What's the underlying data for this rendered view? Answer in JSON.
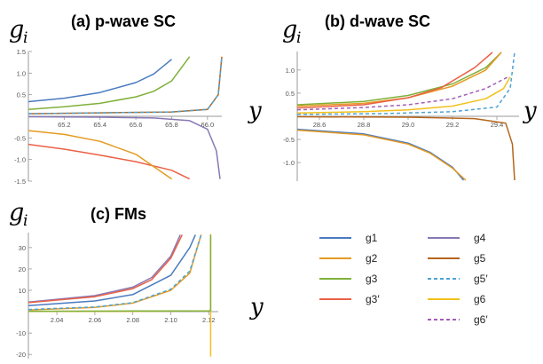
{
  "figure": {
    "axis_symbol": "g",
    "axis_subscript": "i",
    "horizontal_axis_symbol": "y"
  },
  "legend": {
    "entries": [
      {
        "name": "g1",
        "color": "#4a7bbf",
        "dashed": false
      },
      {
        "name": "g2",
        "color": "#e59a22",
        "dashed": false
      },
      {
        "name": "g3",
        "color": "#7fb03a",
        "dashed": false
      },
      {
        "name": "g3′",
        "color": "#ea6146",
        "dashed": false
      },
      {
        "name": "g4",
        "color": "#8878b3",
        "dashed": false
      },
      {
        "name": "g5",
        "color": "#b5651d",
        "dashed": false
      },
      {
        "name": "g5′",
        "color": "#4ea3d1",
        "dashed": true
      },
      {
        "name": "g6",
        "color": "#f2c11b",
        "dashed": false
      },
      {
        "name": "g6′",
        "color": "#a35eb6",
        "dashed": true
      }
    ]
  },
  "chart_data": [
    {
      "type": "line",
      "title": "(a) p-wave SC",
      "xlabel": "y",
      "ylabel": "g_i",
      "xlim": [
        65.0,
        66.08
      ],
      "ylim": [
        -1.5,
        1.5
      ],
      "xticks": [
        "65.2",
        "65.4",
        "65.6",
        "65.8",
        "66.0"
      ],
      "xtick_values": [
        65.2,
        65.4,
        65.6,
        65.8,
        66.0
      ],
      "yticks": [
        "1.5",
        "1.0",
        "0.5",
        "-0.5",
        "-1.0",
        "-1.5"
      ],
      "ytick_values": [
        1.5,
        1.0,
        0.5,
        -0.5,
        -1.0,
        -1.5
      ],
      "series": [
        {
          "name": "g1",
          "x": [
            65.0,
            65.2,
            65.4,
            65.6,
            65.7,
            65.8
          ],
          "y": [
            0.34,
            0.42,
            0.55,
            0.78,
            0.98,
            1.32
          ]
        },
        {
          "name": "g3",
          "x": [
            65.0,
            65.2,
            65.4,
            65.6,
            65.7,
            65.8,
            65.9
          ],
          "y": [
            0.16,
            0.22,
            0.3,
            0.45,
            0.58,
            0.82,
            1.38
          ]
        },
        {
          "name": "g3′",
          "x": [
            65.0,
            65.2,
            65.4,
            65.6,
            65.8,
            65.9
          ],
          "y": [
            -0.65,
            -0.76,
            -0.9,
            -1.05,
            -1.25,
            -1.45
          ]
        },
        {
          "name": "g2",
          "x": [
            65.0,
            65.2,
            65.4,
            65.6,
            65.8
          ],
          "y": [
            -0.33,
            -0.42,
            -0.58,
            -0.88,
            -1.45
          ]
        },
        {
          "name": "g4",
          "x": [
            65.0,
            65.4,
            65.7,
            65.9,
            66.0,
            66.05,
            66.07
          ],
          "y": [
            -0.01,
            -0.02,
            -0.04,
            -0.1,
            -0.3,
            -0.8,
            -1.45
          ]
        },
        {
          "name": "g5",
          "x": [
            65.0,
            65.4,
            65.8,
            66.0,
            66.06,
            66.08
          ],
          "y": [
            0.06,
            0.08,
            0.1,
            0.16,
            0.5,
            1.38
          ]
        },
        {
          "name": "g5′",
          "x": [
            65.0,
            65.4,
            65.8,
            66.0,
            66.06,
            66.08
          ],
          "y": [
            0.06,
            0.08,
            0.1,
            0.16,
            0.5,
            1.38
          ]
        }
      ]
    },
    {
      "type": "line",
      "title": "(b) d-wave  SC",
      "xlabel": "y",
      "ylabel": "g_i",
      "xlim": [
        28.5,
        29.5
      ],
      "ylim": [
        -1.4,
        1.4
      ],
      "xticks": [
        "28.6",
        "28.8",
        "29.0",
        "29.2",
        "29.4"
      ],
      "xtick_values": [
        28.6,
        28.8,
        29.0,
        29.2,
        29.4
      ],
      "yticks": [
        "1.0",
        "0.5",
        "-0.5",
        "-1.0"
      ],
      "ytick_values": [
        1.0,
        0.5,
        -0.5,
        -1.0
      ],
      "series": [
        {
          "name": "g3",
          "x": [
            28.5,
            28.8,
            29.0,
            29.2,
            29.35,
            29.42
          ],
          "y": [
            0.25,
            0.32,
            0.45,
            0.7,
            1.05,
            1.38
          ]
        },
        {
          "name": "g2",
          "x": [
            28.5,
            28.8,
            29.0,
            29.2,
            29.35,
            29.42
          ],
          "y": [
            0.22,
            0.28,
            0.4,
            0.65,
            1.0,
            1.38
          ]
        },
        {
          "name": "g3′",
          "x": [
            28.5,
            28.8,
            29.0,
            29.15,
            29.3,
            29.38
          ],
          "y": [
            0.18,
            0.25,
            0.4,
            0.62,
            1.05,
            1.38
          ]
        },
        {
          "name": "g6′",
          "x": [
            28.5,
            28.8,
            29.0,
            29.2,
            29.35,
            29.45
          ],
          "y": [
            0.14,
            0.19,
            0.25,
            0.38,
            0.6,
            0.85
          ]
        },
        {
          "name": "g6",
          "x": [
            28.5,
            28.8,
            29.0,
            29.2,
            29.35,
            29.43,
            29.46
          ],
          "y": [
            0.07,
            0.1,
            0.14,
            0.22,
            0.38,
            0.6,
            0.85
          ]
        },
        {
          "name": "g5′",
          "x": [
            28.5,
            28.9,
            29.2,
            29.4,
            29.46,
            29.48
          ],
          "y": [
            0.04,
            0.06,
            0.1,
            0.2,
            0.6,
            1.38
          ]
        },
        {
          "name": "g1",
          "x": [
            28.5,
            28.8,
            29.0,
            29.1,
            29.2,
            29.25
          ],
          "y": [
            -0.28,
            -0.38,
            -0.58,
            -0.78,
            -1.1,
            -1.38
          ]
        },
        {
          "name": "g2",
          "x": [
            28.5,
            28.8,
            29.0,
            29.1,
            29.2,
            29.26
          ],
          "y": [
            -0.3,
            -0.4,
            -0.6,
            -0.8,
            -1.12,
            -1.38
          ]
        },
        {
          "name": "g5",
          "x": [
            28.5,
            29.0,
            29.3,
            29.44,
            29.47,
            29.48
          ],
          "y": [
            -0.01,
            -0.02,
            -0.05,
            -0.15,
            -0.6,
            -1.38
          ]
        }
      ]
    },
    {
      "type": "line",
      "title": "(c) FMs",
      "xlabel": "y",
      "ylabel": "g_i",
      "xlim": [
        2.025,
        2.125
      ],
      "ylim": [
        -22,
        37
      ],
      "xticks": [
        "2.04",
        "2.06",
        "2.08",
        "2.10",
        "2.12"
      ],
      "xtick_values": [
        2.04,
        2.06,
        2.08,
        2.1,
        2.12
      ],
      "yticks": [
        "30",
        "20",
        "10",
        "-10",
        "-20"
      ],
      "ytick_values": [
        30,
        20,
        10,
        -10,
        -20
      ],
      "series": [
        {
          "name": "g4",
          "x": [
            2.025,
            2.06,
            2.08,
            2.09,
            2.1,
            2.105
          ],
          "y": [
            4.5,
            7.5,
            11.5,
            16,
            26,
            36
          ]
        },
        {
          "name": "g3′",
          "x": [
            2.025,
            2.06,
            2.08,
            2.09,
            2.1,
            2.106
          ],
          "y": [
            4.2,
            7,
            10.8,
            15,
            25,
            36
          ]
        },
        {
          "name": "g1",
          "x": [
            2.025,
            2.06,
            2.08,
            2.1,
            2.11,
            2.113
          ],
          "y": [
            2.8,
            5,
            8,
            17,
            30,
            36
          ]
        },
        {
          "name": "g2",
          "x": [
            2.025,
            2.06,
            2.08,
            2.1,
            2.11,
            2.116
          ],
          "y": [
            0.8,
            2,
            4,
            10,
            18,
            36
          ]
        },
        {
          "name": "g5′",
          "x": [
            2.025,
            2.06,
            2.08,
            2.1,
            2.11,
            2.116
          ],
          "y": [
            1,
            2.2,
            4.2,
            10.5,
            19,
            36
          ]
        },
        {
          "name": "g6",
          "x": [
            2.025,
            2.08,
            2.11,
            2.121,
            2.121,
            2.121
          ],
          "y": [
            0.1,
            0.2,
            0.3,
            0.4,
            36,
            -21
          ]
        },
        {
          "name": "g3",
          "x": [
            2.025,
            2.08,
            2.12,
            2.121,
            2.121
          ],
          "y": [
            0.2,
            0.3,
            0.4,
            0.5,
            36
          ]
        }
      ]
    }
  ]
}
